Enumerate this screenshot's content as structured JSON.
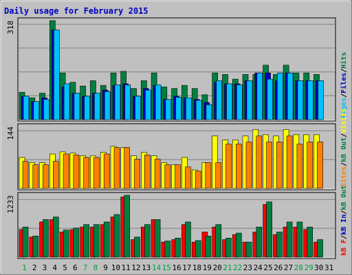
{
  "chart_data": {
    "type": "bar",
    "title": "Daily usage for February 2015",
    "categories": [
      "1",
      "2",
      "3",
      "4",
      "5",
      "6",
      "7",
      "8",
      "9",
      "10",
      "11",
      "12",
      "13",
      "14",
      "15",
      "16",
      "17",
      "18",
      "19",
      "20",
      "21",
      "22",
      "23",
      "24",
      "25",
      "26",
      "27",
      "28",
      "29",
      "30",
      "31"
    ],
    "weekend_days": [
      "1",
      "7",
      "8",
      "14",
      "15",
      "21",
      "22",
      "28",
      "29"
    ],
    "panels": [
      {
        "id": "top",
        "max_label": "318",
        "ymax": 318,
        "legend": [
          {
            "text": "Pages",
            "color": "#00c0ff"
          },
          {
            "text": "/",
            "color": "#000000"
          },
          {
            "text": "Files",
            "color": "#0000c0"
          },
          {
            "text": "/",
            "color": "#000000"
          },
          {
            "text": "Hits",
            "color": "#008040"
          }
        ],
        "series": [
          {
            "name": "Hits",
            "color": "#008040",
            "values": [
              88,
              70,
              85,
              318,
              150,
              120,
              108,
              125,
              110,
              150,
              155,
              100,
              125,
              150,
              105,
              100,
              110,
              100,
              80,
              150,
              145,
              130,
              145,
              145,
              175,
              145,
              175,
              150,
              150,
              145,
              0
            ]
          },
          {
            "name": "Files",
            "color": "#0000c0",
            "values": [
              75,
              58,
              70,
              288,
              105,
              85,
              75,
              85,
              95,
              110,
              115,
              75,
              100,
              110,
              65,
              75,
              70,
              65,
              55,
              120,
              115,
              115,
              125,
              150,
              150,
              125,
              150,
              125,
              125,
              125,
              0
            ]
          },
          {
            "name": "Pages",
            "color": "#00c0ff",
            "values": [
              75,
              58,
              65,
              288,
              115,
              85,
              75,
              85,
              90,
              112,
              112,
              75,
              95,
              112,
              65,
              72,
              70,
              62,
              48,
              125,
              115,
              112,
              125,
              150,
              130,
              150,
              150,
              125,
              125,
              125,
              0
            ]
          }
        ]
      },
      {
        "id": "middle",
        "max_label": "144",
        "ymax": 144,
        "legend": [
          {
            "text": "Sites",
            "color": "#ff8000"
          },
          {
            "text": "/",
            "color": "#000000"
          },
          {
            "text": "kB Out",
            "color": "#008040"
          },
          {
            "text": "/",
            "color": "#000000"
          },
          {
            "text": "Visits",
            "color": "#ffff00"
          }
        ],
        "series": [
          {
            "name": "Visits",
            "color": "#ffff00",
            "values": [
              72,
              60,
              60,
              80,
              85,
              82,
              76,
              76,
              84,
              98,
              95,
              76,
              84,
              76,
              60,
              55,
              72,
              43,
              60,
              122,
              113,
              113,
              122,
              137,
              125,
              122,
              137,
              125,
              125,
              125,
              0
            ]
          },
          {
            "name": "Sites",
            "color": "#ff8000",
            "values": [
              63,
              55,
              55,
              63,
              80,
              78,
              72,
              72,
              80,
              95,
              95,
              68,
              78,
              68,
              55,
              55,
              50,
              40,
              60,
              60,
              103,
              103,
              108,
              122,
              108,
              108,
              122,
              103,
              108,
              108,
              0
            ]
          }
        ]
      },
      {
        "id": "bottom",
        "max_label": "1233",
        "ymax": 1233,
        "legend": [
          {
            "text": "kB F",
            "color": "#ff0000"
          },
          {
            "text": "/",
            "color": "#000000"
          },
          {
            "text": "kB In",
            "color": "#0000c0"
          },
          {
            "text": "/",
            "color": "#000000"
          },
          {
            "text": "kB Out",
            "color": "#008040"
          }
        ],
        "series": [
          {
            "name": "kB F",
            "color": "#ff0000",
            "values": [
              550,
              400,
              700,
              750,
              500,
              550,
              600,
              600,
              650,
              800,
              1200,
              350,
              600,
              750,
              300,
              350,
              650,
              300,
              500,
              600,
              350,
              450,
              300,
              500,
              1050,
              450,
              600,
              600,
              550,
              300,
              0
            ]
          },
          {
            "name": "kB Out",
            "color": "#008040",
            "values": [
              600,
              420,
              750,
              800,
              540,
              580,
              650,
              650,
              700,
              850,
              1233,
              400,
              650,
              750,
              320,
              380,
              700,
              330,
              420,
              650,
              380,
              480,
              300,
              600,
              1100,
              500,
              700,
              700,
              600,
              350,
              0
            ]
          }
        ]
      }
    ]
  }
}
